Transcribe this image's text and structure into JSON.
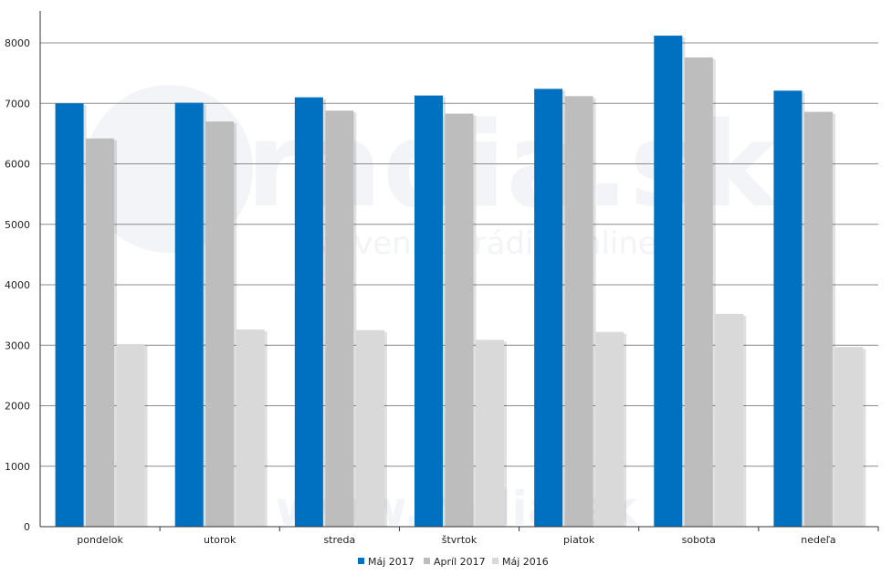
{
  "chart_data": {
    "type": "bar",
    "categories": [
      "pondelok",
      "utorok",
      "streda",
      "štvrtok",
      "piatok",
      "sobota",
      "nedeľa"
    ],
    "series": [
      {
        "name": "Máj 2017",
        "values": [
          7000,
          7010,
          7100,
          7130,
          7240,
          8120,
          7210
        ],
        "color": "#0070c0"
      },
      {
        "name": "Apríl 2017",
        "values": [
          6420,
          6700,
          6880,
          6830,
          7120,
          7760,
          6860
        ],
        "color": "#bdbdbd"
      },
      {
        "name": "Máj 2016",
        "values": [
          3020,
          3260,
          3250,
          3090,
          3220,
          3520,
          2970
        ],
        "color": "#d9d9d9"
      }
    ],
    "ylim": [
      0,
      8000
    ],
    "yticks": [
      0,
      1000,
      2000,
      3000,
      4000,
      5000,
      6000,
      7000,
      8000
    ],
    "grid": true,
    "legend_position": "bottom-center",
    "watermark": {
      "brand": "radia.sk",
      "tagline": "slovenské rádiá online",
      "url": "www.radia.sk"
    }
  }
}
